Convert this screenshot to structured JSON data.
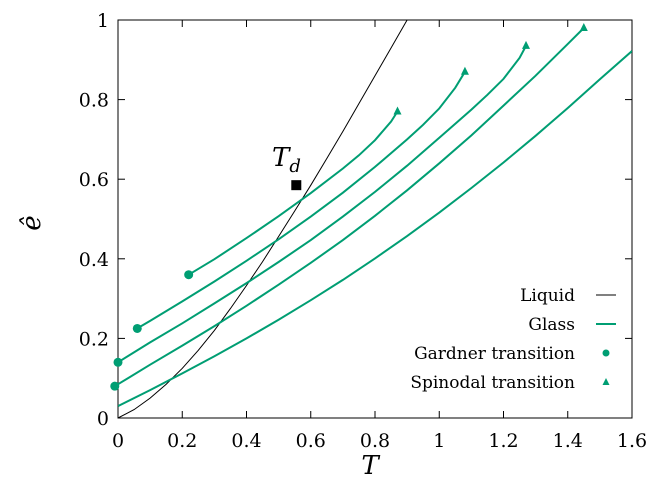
{
  "chart_data": {
    "type": "line",
    "xlabel": "T",
    "ylabel": "ê",
    "xlim": [
      0,
      1.6
    ],
    "ylim": [
      0,
      1
    ],
    "xticks": [
      "0",
      "0.2",
      "0.4",
      "0.6",
      "0.8",
      "1",
      "1.2",
      "1.4",
      "1.6"
    ],
    "yticks": [
      "0",
      "0.2",
      "0.4",
      "0.6",
      "0.8",
      "1"
    ],
    "x_tick_values": [
      0,
      0.2,
      0.4,
      0.6,
      0.8,
      1.0,
      1.2,
      1.4,
      1.6
    ],
    "y_tick_values": [
      0,
      0.2,
      0.4,
      0.6,
      0.8,
      1.0
    ],
    "grid": false,
    "legend_position": "bottom-right",
    "colors": {
      "liquid": "#000000",
      "glass": "#009e73"
    },
    "legend": [
      {
        "label": "Liquid",
        "kind": "line",
        "color": "#000000"
      },
      {
        "label": "Glass",
        "kind": "line",
        "color": "#009e73"
      },
      {
        "label": "Gardner transition",
        "kind": "circle",
        "color": "#009e73"
      },
      {
        "label": "Spinodal transition",
        "kind": "triangle",
        "color": "#009e73"
      }
    ],
    "liquid": {
      "name": "Liquid",
      "x": [
        0.0,
        0.05,
        0.1,
        0.15,
        0.2,
        0.25,
        0.3,
        0.35,
        0.4,
        0.45,
        0.5,
        0.55,
        0.6,
        0.65,
        0.7,
        0.75,
        0.8,
        0.85,
        0.9,
        0.95,
        1.0
      ],
      "y": [
        0.0,
        0.021,
        0.05,
        0.085,
        0.125,
        0.17,
        0.22,
        0.275,
        0.333,
        0.393,
        0.456,
        0.52,
        0.585,
        0.652,
        0.72,
        0.79,
        0.86,
        0.93,
        1.0,
        1.05,
        1.1
      ]
    },
    "glass_series": [
      {
        "x": [
          0.0,
          0.1,
          0.2,
          0.3,
          0.4,
          0.5,
          0.6,
          0.7,
          0.8,
          0.9,
          1.0,
          1.1,
          1.2,
          1.3,
          1.4,
          1.5,
          1.6
        ],
        "y": [
          0.03,
          0.07,
          0.112,
          0.155,
          0.2,
          0.247,
          0.296,
          0.347,
          0.401,
          0.457,
          0.516,
          0.578,
          0.642,
          0.709,
          0.779,
          0.851,
          0.922
        ]
      },
      {
        "x": [
          -0.01,
          0.1,
          0.2,
          0.3,
          0.4,
          0.5,
          0.6,
          0.7,
          0.8,
          0.9,
          1.0,
          1.1,
          1.2,
          1.3,
          1.35,
          1.4,
          1.45
        ],
        "y": [
          0.08,
          0.134,
          0.182,
          0.231,
          0.282,
          0.335,
          0.39,
          0.447,
          0.508,
          0.572,
          0.64,
          0.71,
          0.785,
          0.86,
          0.9,
          0.94,
          0.98
        ]
      },
      {
        "x": [
          0.0,
          0.1,
          0.2,
          0.3,
          0.4,
          0.5,
          0.6,
          0.7,
          0.8,
          0.9,
          1.0,
          1.1,
          1.15,
          1.2,
          1.25,
          1.27
        ],
        "y": [
          0.14,
          0.19,
          0.238,
          0.288,
          0.339,
          0.392,
          0.447,
          0.506,
          0.568,
          0.634,
          0.704,
          0.775,
          0.812,
          0.852,
          0.905,
          0.935
        ]
      },
      {
        "x": [
          0.06,
          0.1,
          0.2,
          0.3,
          0.4,
          0.5,
          0.6,
          0.7,
          0.8,
          0.9,
          0.95,
          1.0,
          1.05,
          1.08
        ],
        "y": [
          0.225,
          0.244,
          0.293,
          0.343,
          0.395,
          0.449,
          0.506,
          0.566,
          0.631,
          0.7,
          0.737,
          0.778,
          0.83,
          0.87
        ]
      },
      {
        "x": [
          0.22,
          0.3,
          0.4,
          0.5,
          0.6,
          0.7,
          0.75,
          0.8,
          0.85,
          0.87
        ],
        "y": [
          0.36,
          0.399,
          0.452,
          0.507,
          0.565,
          0.627,
          0.66,
          0.698,
          0.745,
          0.77
        ]
      }
    ],
    "gardner_points": [
      {
        "x": -0.01,
        "y": 0.08
      },
      {
        "x": 0.0,
        "y": 0.14
      },
      {
        "x": 0.06,
        "y": 0.225
      },
      {
        "x": 0.22,
        "y": 0.36
      }
    ],
    "spinodal_points": [
      {
        "x": 0.87,
        "y": 0.77
      },
      {
        "x": 1.08,
        "y": 0.87
      },
      {
        "x": 1.27,
        "y": 0.935
      },
      {
        "x": 1.45,
        "y": 0.98
      }
    ],
    "dynamic_transition": {
      "label": "T",
      "label_sub": "d",
      "x": 0.555,
      "y": 0.585
    }
  }
}
